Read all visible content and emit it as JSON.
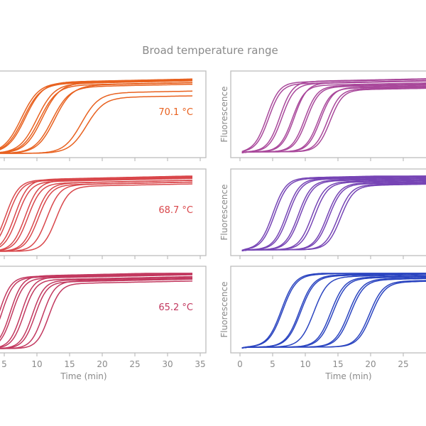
{
  "chart_data": {
    "type": "line",
    "title": "Broad temperature range",
    "xlabel": "Time (min)",
    "ylabel": "Fluorescence",
    "xlim": [
      0,
      35
    ],
    "ylim": [
      0,
      1
    ],
    "xticks": [
      0,
      5,
      10,
      15,
      20,
      25,
      30,
      35
    ],
    "grid": false,
    "panels": [
      {
        "id": "top-left",
        "label": "70.1 °C",
        "color": "#e8611f",
        "k": 0.75,
        "curves": [
          [
            7.6,
            0.93
          ],
          [
            7.9,
            0.92
          ],
          [
            8.2,
            0.94
          ],
          [
            10.0,
            0.92
          ],
          [
            10.4,
            0.9
          ],
          [
            10.8,
            0.93
          ],
          [
            12.3,
            0.88
          ],
          [
            12.7,
            0.9
          ],
          [
            16.8,
            0.8
          ],
          [
            17.6,
            0.74
          ]
        ]
      },
      {
        "id": "mid-left",
        "label": "68.7 °C",
        "color": "#d9474b",
        "k": 1.0,
        "curves": [
          [
            5.2,
            0.94
          ],
          [
            5.6,
            0.93
          ],
          [
            6.6,
            0.95
          ],
          [
            7.0,
            0.92
          ],
          [
            8.2,
            0.93
          ],
          [
            8.6,
            0.9
          ],
          [
            9.8,
            0.9
          ],
          [
            10.2,
            0.88
          ],
          [
            11.5,
            0.88
          ],
          [
            12.9,
            0.86
          ]
        ]
      },
      {
        "id": "bottom-left",
        "label": "65.2 °C",
        "color": "#c2385f",
        "k": 1.1,
        "curves": [
          [
            4.2,
            0.95
          ],
          [
            4.6,
            0.94
          ],
          [
            5.9,
            0.96
          ],
          [
            6.2,
            0.93
          ],
          [
            7.6,
            0.94
          ],
          [
            8.0,
            0.91
          ],
          [
            9.3,
            0.9
          ],
          [
            9.7,
            0.88
          ],
          [
            10.9,
            0.89
          ],
          [
            11.8,
            0.86
          ]
        ]
      },
      {
        "id": "top-right",
        "label": "",
        "color": "#a9489b",
        "k": 1.05,
        "curves": [
          [
            4.1,
            0.92
          ],
          [
            4.4,
            0.9
          ],
          [
            6.1,
            0.93
          ],
          [
            6.4,
            0.9
          ],
          [
            8.0,
            0.88
          ],
          [
            8.3,
            0.91
          ],
          [
            9.9,
            0.87
          ],
          [
            10.2,
            0.86
          ],
          [
            12.0,
            0.84
          ],
          [
            12.3,
            0.85
          ],
          [
            13.4,
            0.83
          ],
          [
            13.8,
            0.82
          ]
        ]
      },
      {
        "id": "mid-right",
        "label": "",
        "color": "#7644b5",
        "k": 1.0,
        "curves": [
          [
            5.0,
            0.95
          ],
          [
            5.3,
            0.94
          ],
          [
            7.1,
            0.94
          ],
          [
            7.4,
            0.93
          ],
          [
            8.9,
            0.92
          ],
          [
            9.2,
            0.91
          ],
          [
            11.0,
            0.9
          ],
          [
            11.4,
            0.89
          ],
          [
            13.3,
            0.88
          ],
          [
            13.6,
            0.87
          ],
          [
            15.0,
            0.86
          ],
          [
            15.4,
            0.85
          ]
        ]
      },
      {
        "id": "bottom-right",
        "label": "",
        "color": "#2a44c0",
        "k": 0.95,
        "curves": [
          [
            6.3,
            0.97
          ],
          [
            6.5,
            0.96
          ],
          [
            9.1,
            0.95
          ],
          [
            9.3,
            0.94
          ],
          [
            11.3,
            0.93
          ],
          [
            13.9,
            0.92
          ],
          [
            14.2,
            0.91
          ],
          [
            16.6,
            0.9
          ],
          [
            16.9,
            0.89
          ],
          [
            19.8,
            0.87
          ],
          [
            20.1,
            0.86
          ]
        ]
      }
    ]
  }
}
